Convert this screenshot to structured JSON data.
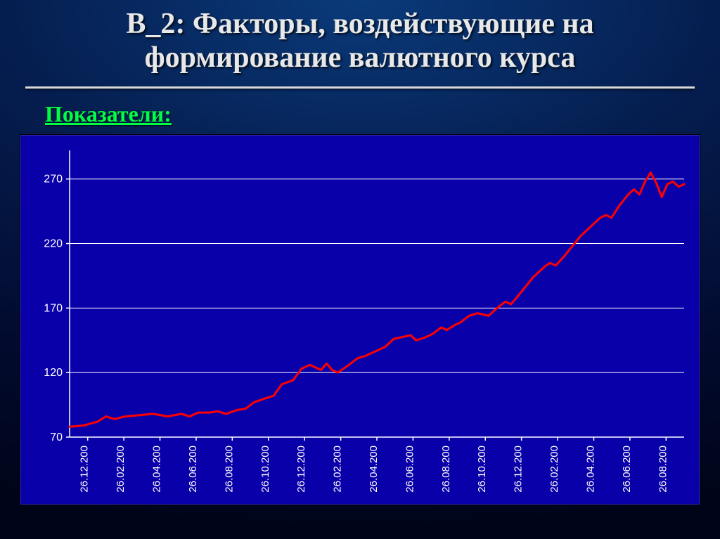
{
  "title_line1": "В_2: Факторы, воздействующие на",
  "title_line2": "формирование валютного курса",
  "subheading": "Показатели:",
  "chart": {
    "type": "line",
    "background_color": "#0a00aa",
    "grid_color": "#ffffff",
    "axis_color": "#ffffff",
    "line_color": "#ff0000",
    "line_width": 3,
    "tick_font_color": "#ffffff",
    "tick_fontsize": 16,
    "ylim": [
      70,
      290
    ],
    "yticks": [
      70,
      120,
      170,
      220,
      270
    ],
    "x_labels": [
      "26.12.200",
      "26.02.200",
      "26.04.200",
      "26.06.200",
      "26.08.200",
      "26.10.200",
      "26.12.200",
      "26.02.200",
      "26.04.200",
      "26.06.200",
      "26.08.200",
      "26.10.200",
      "26.12.200",
      "26.02.200",
      "26.04.200",
      "26.06.200",
      "26.08.200"
    ],
    "x_label_span": 22,
    "data": [
      [
        0,
        78
      ],
      [
        0.5,
        79
      ],
      [
        1,
        82
      ],
      [
        1.3,
        86
      ],
      [
        1.6,
        84
      ],
      [
        2,
        86
      ],
      [
        2.5,
        87
      ],
      [
        3,
        88
      ],
      [
        3.5,
        86
      ],
      [
        4,
        88
      ],
      [
        4.3,
        86
      ],
      [
        4.6,
        89
      ],
      [
        5,
        89
      ],
      [
        5.3,
        90
      ],
      [
        5.6,
        88
      ],
      [
        6,
        91
      ],
      [
        6.3,
        92
      ],
      [
        6.6,
        97
      ],
      [
        7,
        100
      ],
      [
        7.3,
        102
      ],
      [
        7.6,
        111
      ],
      [
        8,
        114
      ],
      [
        8.3,
        123
      ],
      [
        8.6,
        126
      ],
      [
        9,
        122
      ],
      [
        9.2,
        127
      ],
      [
        9.4,
        122
      ],
      [
        9.6,
        120
      ],
      [
        10,
        126
      ],
      [
        10.3,
        131
      ],
      [
        10.6,
        133
      ],
      [
        11,
        137
      ],
      [
        11.3,
        140
      ],
      [
        11.6,
        146
      ],
      [
        12,
        148
      ],
      [
        12.2,
        149
      ],
      [
        12.4,
        145
      ],
      [
        12.7,
        147
      ],
      [
        13,
        150
      ],
      [
        13.3,
        155
      ],
      [
        13.5,
        153
      ],
      [
        13.8,
        157
      ],
      [
        14,
        159
      ],
      [
        14.3,
        164
      ],
      [
        14.6,
        166
      ],
      [
        14.8,
        165
      ],
      [
        15,
        164
      ],
      [
        15.3,
        170
      ],
      [
        15.6,
        175
      ],
      [
        15.8,
        173
      ],
      [
        16,
        178
      ],
      [
        16.3,
        186
      ],
      [
        16.6,
        194
      ],
      [
        17,
        202
      ],
      [
        17.2,
        205
      ],
      [
        17.4,
        203
      ],
      [
        17.7,
        210
      ],
      [
        18,
        218
      ],
      [
        18.3,
        226
      ],
      [
        18.6,
        232
      ],
      [
        19,
        240
      ],
      [
        19.2,
        242
      ],
      [
        19.4,
        240
      ],
      [
        19.7,
        250
      ],
      [
        20,
        258
      ],
      [
        20.2,
        262
      ],
      [
        20.4,
        258
      ],
      [
        20.6,
        268
      ],
      [
        20.8,
        275
      ],
      [
        21,
        267
      ],
      [
        21.2,
        256
      ],
      [
        21.4,
        266
      ],
      [
        21.6,
        268
      ],
      [
        21.8,
        264
      ],
      [
        22,
        266
      ]
    ]
  }
}
